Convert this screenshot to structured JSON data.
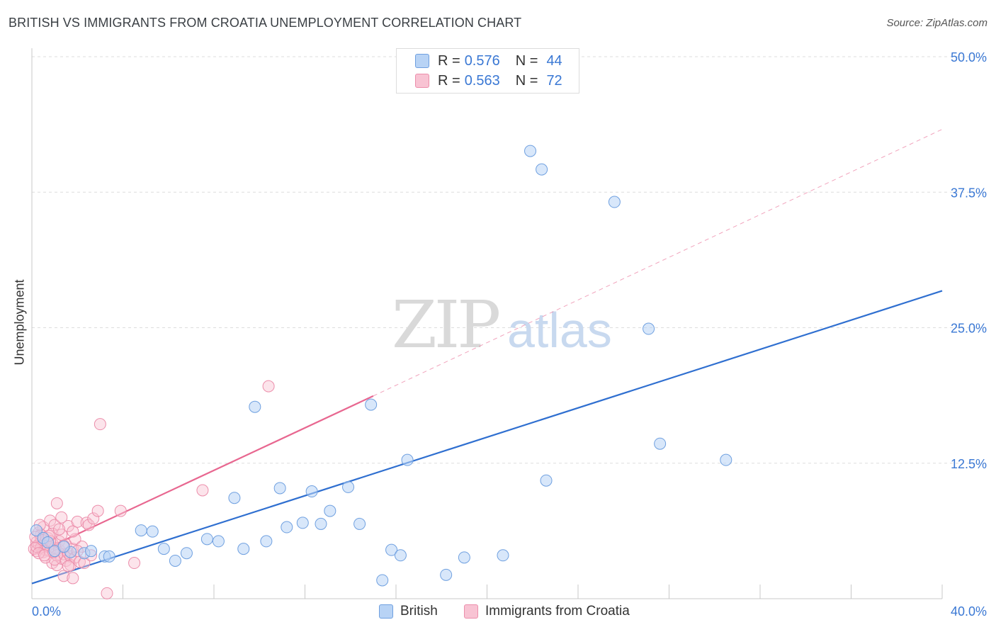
{
  "header": {
    "title": "BRITISH VS IMMIGRANTS FROM CROATIA UNEMPLOYMENT CORRELATION CHART",
    "source": "Source: ZipAtlas.com"
  },
  "legend": {
    "british": {
      "r_label": "R =",
      "r_value": "0.576",
      "n_label": "N =",
      "n_value": "44"
    },
    "croatia": {
      "r_label": "R =",
      "r_value": "0.563",
      "n_label": "N =",
      "n_value": "72"
    }
  },
  "colors": {
    "british_fill": "#b8d3f5",
    "british_stroke": "#6fa0e0",
    "british_line": "#2f6fd0",
    "croatia_fill": "#f8c3d3",
    "croatia_stroke": "#ec8eab",
    "croatia_line": "#e86790",
    "tick_label": "#3a78d4",
    "grid": "#dddddd"
  },
  "chart_data": {
    "type": "scatter",
    "title": "BRITISH VS IMMIGRANTS FROM CROATIA UNEMPLOYMENT CORRELATION CHART",
    "xlabel": "",
    "ylabel": "Unemployment",
    "xlim": [
      0,
      40
    ],
    "ylim": [
      0,
      50
    ],
    "x_tick_labels": [
      "0.0%",
      "40.0%"
    ],
    "y_ticks": [
      12.5,
      25.0,
      37.5,
      50.0
    ],
    "y_tick_labels": [
      "12.5%",
      "25.0%",
      "37.5%",
      "50.0%"
    ],
    "watermark": {
      "bold": "ZIP",
      "light": "atlas"
    },
    "series": [
      {
        "name": "British",
        "points": [
          [
            0.2,
            6.3
          ],
          [
            0.5,
            5.6
          ],
          [
            1.0,
            4.4
          ],
          [
            1.7,
            4.3
          ],
          [
            2.3,
            4.2
          ],
          [
            2.6,
            4.4
          ],
          [
            3.2,
            3.9
          ],
          [
            3.4,
            3.9
          ],
          [
            4.8,
            6.3
          ],
          [
            5.3,
            6.2
          ],
          [
            5.8,
            4.6
          ],
          [
            6.3,
            3.5
          ],
          [
            6.8,
            4.2
          ],
          [
            7.7,
            5.5
          ],
          [
            8.2,
            5.3
          ],
          [
            8.9,
            9.3
          ],
          [
            9.3,
            4.6
          ],
          [
            9.8,
            17.7
          ],
          [
            10.3,
            5.3
          ],
          [
            10.9,
            10.2
          ],
          [
            11.2,
            6.6
          ],
          [
            11.9,
            7.0
          ],
          [
            12.3,
            9.9
          ],
          [
            12.7,
            6.9
          ],
          [
            13.1,
            8.1
          ],
          [
            13.9,
            10.3
          ],
          [
            14.4,
            6.9
          ],
          [
            14.9,
            17.9
          ],
          [
            15.4,
            1.7
          ],
          [
            15.8,
            4.5
          ],
          [
            16.2,
            4.0
          ],
          [
            16.5,
            12.8
          ],
          [
            18.2,
            2.2
          ],
          [
            19.0,
            3.8
          ],
          [
            20.7,
            4.0
          ],
          [
            21.9,
            41.3
          ],
          [
            22.4,
            39.6
          ],
          [
            22.6,
            10.9
          ],
          [
            25.6,
            36.6
          ],
          [
            27.1,
            24.9
          ],
          [
            27.6,
            14.3
          ],
          [
            30.5,
            12.8
          ],
          [
            0.7,
            5.2
          ],
          [
            1.4,
            4.8
          ]
        ],
        "trend": {
          "x": [
            0,
            40
          ],
          "y": [
            1.4,
            28.4
          ]
        }
      },
      {
        "name": "Immigrants from Croatia",
        "points": [
          [
            0.1,
            4.6
          ],
          [
            0.2,
            5.2
          ],
          [
            0.2,
            4.4
          ],
          [
            0.3,
            6.1
          ],
          [
            0.3,
            5.0
          ],
          [
            0.4,
            4.7
          ],
          [
            0.4,
            5.5
          ],
          [
            0.5,
            4.3
          ],
          [
            0.5,
            6.6
          ],
          [
            0.6,
            5.0
          ],
          [
            0.6,
            4.5
          ],
          [
            0.7,
            5.6
          ],
          [
            0.7,
            4.9
          ],
          [
            0.8,
            4.4
          ],
          [
            0.8,
            7.2
          ],
          [
            0.9,
            5.1
          ],
          [
            0.9,
            3.3
          ],
          [
            1.0,
            6.8
          ],
          [
            1.0,
            4.7
          ],
          [
            1.1,
            8.8
          ],
          [
            1.1,
            3.1
          ],
          [
            1.2,
            4.5
          ],
          [
            1.2,
            5.3
          ],
          [
            1.3,
            3.7
          ],
          [
            1.3,
            7.5
          ],
          [
            1.4,
            4.1
          ],
          [
            1.4,
            2.1
          ],
          [
            1.5,
            5.0
          ],
          [
            1.5,
            3.5
          ],
          [
            1.6,
            4.2
          ],
          [
            1.6,
            6.7
          ],
          [
            1.7,
            3.9
          ],
          [
            1.7,
            3.1
          ],
          [
            1.8,
            1.9
          ],
          [
            1.8,
            4.6
          ],
          [
            1.9,
            5.5
          ],
          [
            1.9,
            3.8
          ],
          [
            2.0,
            7.1
          ],
          [
            2.1,
            3.4
          ],
          [
            2.2,
            4.8
          ],
          [
            2.3,
            3.3
          ],
          [
            2.4,
            7.0
          ],
          [
            2.5,
            6.8
          ],
          [
            2.6,
            4.0
          ],
          [
            2.7,
            7.4
          ],
          [
            2.9,
            8.1
          ],
          [
            3.0,
            16.1
          ],
          [
            3.3,
            0.5
          ],
          [
            3.9,
            8.1
          ],
          [
            4.5,
            3.3
          ],
          [
            7.5,
            10.0
          ],
          [
            10.4,
            19.6
          ],
          [
            0.2,
            4.8
          ],
          [
            0.4,
            5.9
          ],
          [
            0.6,
            3.8
          ],
          [
            0.9,
            6.0
          ],
          [
            1.1,
            4.0
          ],
          [
            1.3,
            5.9
          ],
          [
            0.3,
            4.2
          ],
          [
            0.5,
            5.4
          ],
          [
            0.8,
            5.3
          ],
          [
            1.0,
            3.6
          ],
          [
            1.2,
            6.4
          ],
          [
            1.4,
            4.9
          ],
          [
            1.6,
            3.0
          ],
          [
            1.8,
            6.2
          ],
          [
            2.0,
            4.4
          ],
          [
            0.15,
            5.7
          ],
          [
            0.35,
            6.8
          ],
          [
            0.55,
            4.0
          ],
          [
            0.75,
            5.8
          ],
          [
            0.95,
            4.3
          ]
        ],
        "trend": {
          "x": [
            0,
            15
          ],
          "y": [
            4.0,
            18.7
          ]
        },
        "trend_extension": {
          "x": [
            15,
            40
          ],
          "y": [
            18.7,
            43.3
          ]
        }
      }
    ]
  },
  "bottom_legend": {
    "british": "British",
    "croatia": "Immigrants from Croatia"
  }
}
